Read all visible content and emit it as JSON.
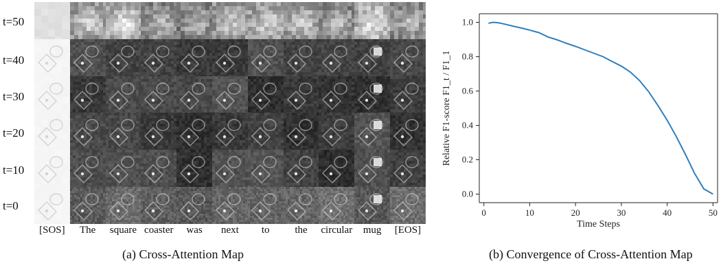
{
  "figure_a": {
    "row_labels": [
      "t=50",
      "t=40",
      "t=30",
      "t=20",
      "t=10",
      "t=0"
    ],
    "tokens": [
      "[SOS]",
      "The",
      "square",
      "coaster",
      "was",
      "next",
      "to",
      "the",
      "circular",
      "mug",
      "[EOS]"
    ],
    "caption": "(a) Cross-Attention Map"
  },
  "figure_b": {
    "caption": "(b) Convergence of Cross-Attention Map"
  },
  "chart_data": {
    "type": "line",
    "xlabel": "Time Steps",
    "ylabel": "Relative F1-score F1_t / F1_1",
    "x_ticks": [
      "0",
      "10",
      "20",
      "30",
      "40",
      "50"
    ],
    "y_ticks": [
      "0.0",
      "0.2",
      "0.4",
      "0.6",
      "0.8",
      "1.0"
    ],
    "xlim": [
      0,
      50
    ],
    "ylim": [
      0,
      1.0
    ],
    "grid": false,
    "line_color": "#2f7ebc",
    "series": [
      {
        "x": [
          1,
          2,
          3,
          4,
          5,
          6,
          8,
          10,
          12,
          14,
          16,
          18,
          20,
          22,
          24,
          26,
          28,
          30,
          32,
          34,
          36,
          38,
          40,
          42,
          44,
          46,
          48,
          50
        ],
        "values": [
          0.995,
          1.0,
          0.998,
          0.993,
          0.987,
          0.98,
          0.968,
          0.955,
          0.94,
          0.915,
          0.898,
          0.878,
          0.86,
          0.84,
          0.82,
          0.8,
          0.772,
          0.745,
          0.71,
          0.66,
          0.595,
          0.515,
          0.43,
          0.335,
          0.23,
          0.12,
          0.03,
          0.0
        ]
      }
    ]
  }
}
